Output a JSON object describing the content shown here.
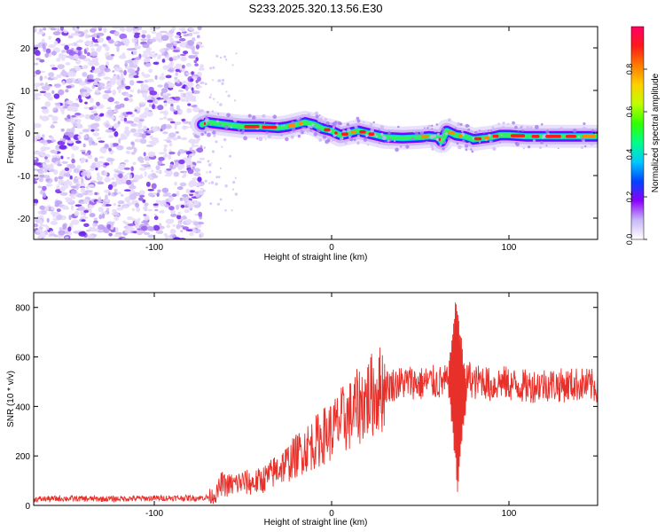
{
  "figure_title": "S233.2025.320.13.56.E30",
  "colors": {
    "axis": "#000000",
    "snr_line": "#e8302a",
    "speckle": "#7b2ff0"
  },
  "chart_data": [
    {
      "type": "heatmap",
      "title": "S233.2025.320.13.56.E30",
      "xlabel": "Height of straight line (km)",
      "ylabel": "Frequency (Hz)",
      "xlim": [
        -168,
        150
      ],
      "ylim": [
        -25,
        25
      ],
      "xticks": [
        -100,
        0,
        100
      ],
      "yticks": [
        -20,
        -10,
        0,
        10,
        20
      ],
      "noise_region_x": [
        -168,
        -73
      ],
      "ridge": {
        "x": [
          -73,
          -70,
          -60,
          -50,
          -40,
          -30,
          -25,
          -20,
          -15,
          -10,
          -5,
          0,
          5,
          10,
          15,
          20,
          25,
          30,
          40,
          50,
          55,
          60,
          62,
          65,
          70,
          75,
          80,
          85,
          90,
          95,
          100,
          110,
          120,
          130,
          140,
          150
        ],
        "freq": [
          2.0,
          2.5,
          2.0,
          1.5,
          1.5,
          1.2,
          1.5,
          2.0,
          2.5,
          2.0,
          1.0,
          0.5,
          -0.5,
          0.0,
          0.5,
          0.0,
          -0.5,
          -1.0,
          -1.2,
          -1.0,
          -0.8,
          -1.0,
          -2.0,
          0.5,
          -0.5,
          -0.8,
          -1.5,
          -1.2,
          -1.0,
          -0.5,
          -0.5,
          -0.8,
          -0.8,
          -0.8,
          -0.8,
          -0.8
        ]
      },
      "colorbar": {
        "label": "Normalized spectral amplitude",
        "ticks": [
          0.0,
          0.2,
          0.4,
          0.6,
          0.8
        ],
        "tick_labels": [
          "0.0",
          "0.2",
          "0.4",
          "0.6",
          "0.8"
        ],
        "range": [
          0,
          1
        ],
        "colors": [
          "#ffffff",
          "#c9b7f7",
          "#8a00ff",
          "#0044ff",
          "#00c8ff",
          "#00ff88",
          "#33ff00",
          "#bfff00",
          "#ffd000",
          "#ff7a00",
          "#ff1a1a",
          "#ff0066"
        ]
      }
    },
    {
      "type": "line",
      "xlabel": "Height of straight line (km)",
      "ylabel": "SNR (10 * v/v)",
      "xlim": [
        -168,
        150
      ],
      "ylim": [
        0,
        860
      ],
      "xticks": [
        -100,
        0,
        100
      ],
      "yticks": [
        0,
        200,
        400,
        600,
        800
      ],
      "series": [
        {
          "name": "SNR",
          "x": [
            -168,
            -150,
            -130,
            -110,
            -90,
            -75,
            -70,
            -65,
            -62,
            -60,
            -55,
            -50,
            -45,
            -40,
            -35,
            -30,
            -25,
            -20,
            -15,
            -10,
            -5,
            0,
            5,
            10,
            15,
            20,
            25,
            30,
            35,
            40,
            45,
            50,
            55,
            60,
            65,
            68,
            70,
            72,
            74,
            76,
            78,
            80,
            85,
            90,
            95,
            100,
            110,
            120,
            130,
            140,
            150
          ],
          "values": [
            25,
            28,
            26,
            28,
            30,
            30,
            32,
            45,
            90,
            80,
            85,
            95,
            90,
            100,
            120,
            150,
            170,
            200,
            230,
            250,
            280,
            300,
            340,
            360,
            400,
            430,
            460,
            480,
            490,
            495,
            500,
            490,
            500,
            495,
            500,
            480,
            430,
            480,
            460,
            500,
            520,
            490,
            510,
            480,
            500,
            490,
            480,
            490,
            485,
            490,
            480
          ]
        },
        {
          "name": "spike_band",
          "x": [
            66,
            67,
            68,
            69,
            70,
            71,
            72,
            73,
            74,
            75,
            76
          ],
          "hi": [
            560,
            640,
            700,
            780,
            850,
            820,
            760,
            700,
            620,
            580,
            540
          ],
          "lo": [
            420,
            360,
            300,
            220,
            150,
            20,
            120,
            200,
            280,
            330,
            380
          ]
        }
      ]
    }
  ]
}
